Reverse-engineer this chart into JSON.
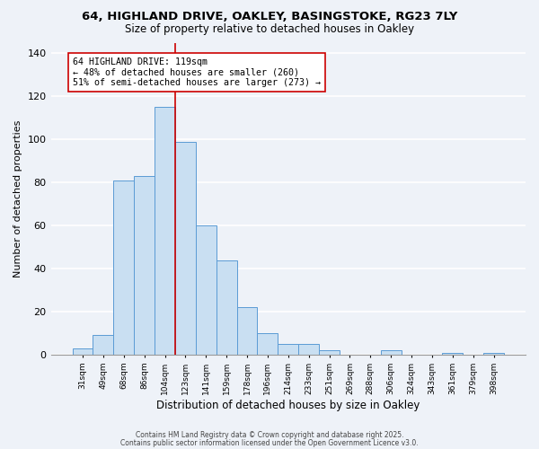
{
  "title_line1": "64, HIGHLAND DRIVE, OAKLEY, BASINGSTOKE, RG23 7LY",
  "title_line2": "Size of property relative to detached houses in Oakley",
  "xlabel": "Distribution of detached houses by size in Oakley",
  "ylabel": "Number of detached properties",
  "bar_labels": [
    "31sqm",
    "49sqm",
    "68sqm",
    "86sqm",
    "104sqm",
    "123sqm",
    "141sqm",
    "159sqm",
    "178sqm",
    "196sqm",
    "214sqm",
    "233sqm",
    "251sqm",
    "269sqm",
    "288sqm",
    "306sqm",
    "324sqm",
    "343sqm",
    "361sqm",
    "379sqm",
    "398sqm"
  ],
  "bar_values": [
    3,
    9,
    81,
    83,
    115,
    99,
    60,
    44,
    22,
    10,
    5,
    5,
    2,
    0,
    0,
    2,
    0,
    0,
    1,
    0,
    1
  ],
  "bar_color": "#c9dff2",
  "bar_edgecolor": "#5b9bd5",
  "vline_x": 4.5,
  "vline_color": "#cc0000",
  "annotation_title": "64 HIGHLAND DRIVE: 119sqm",
  "annotation_line2": "← 48% of detached houses are smaller (260)",
  "annotation_line3": "51% of semi-detached houses are larger (273) →",
  "annotation_box_edgecolor": "#cc0000",
  "annotation_fontsize": 7.2,
  "ylim": [
    0,
    145
  ],
  "yticks": [
    0,
    20,
    40,
    60,
    80,
    100,
    120,
    140
  ],
  "footnote1": "Contains HM Land Registry data © Crown copyright and database right 2025.",
  "footnote2": "Contains public sector information licensed under the Open Government Licence v3.0.",
  "background_color": "#eef2f8"
}
